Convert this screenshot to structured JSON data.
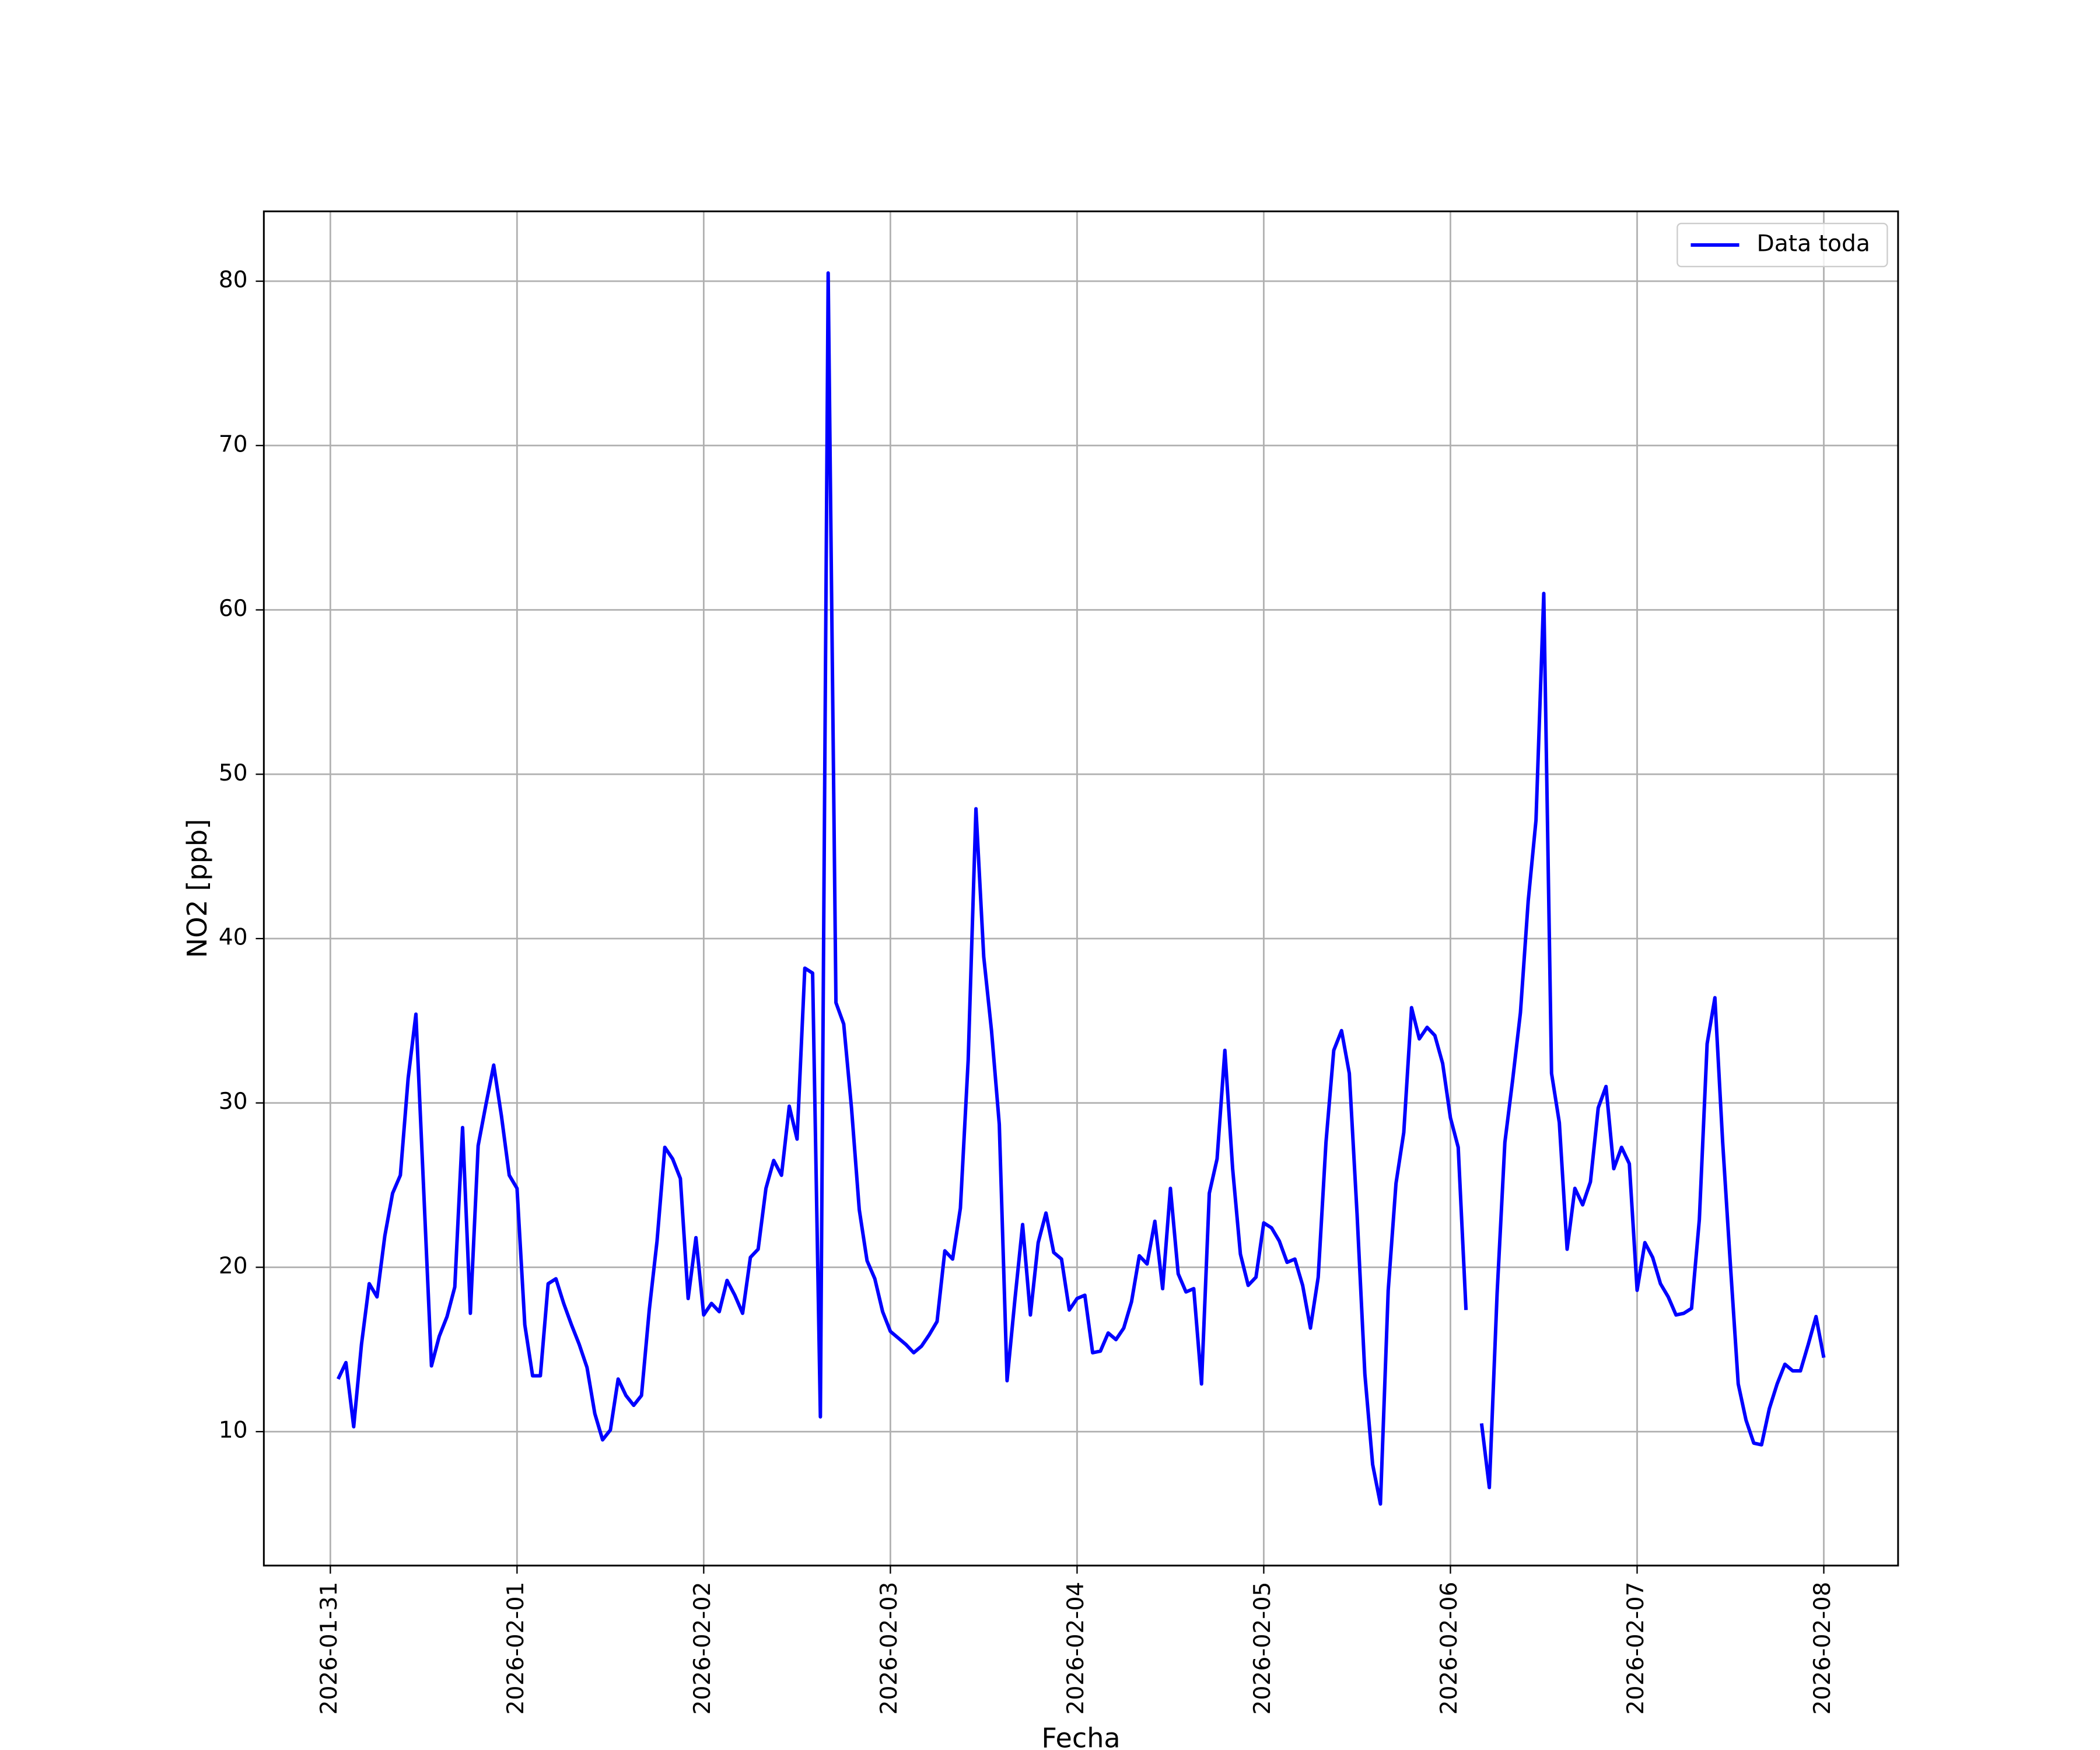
{
  "chart_data": {
    "type": "line",
    "x_label": "Fecha",
    "y_label": "NO2 [ppb]",
    "x": [
      "2026-01-31T01:00",
      "2026-01-31T02:00",
      "2026-01-31T03:00",
      "2026-01-31T04:00",
      "2026-01-31T05:00",
      "2026-01-31T06:00",
      "2026-01-31T07:00",
      "2026-01-31T08:00",
      "2026-01-31T09:00",
      "2026-01-31T10:00",
      "2026-01-31T11:00",
      "2026-01-31T12:00",
      "2026-01-31T13:00",
      "2026-01-31T14:00",
      "2026-01-31T15:00",
      "2026-01-31T16:00",
      "2026-01-31T17:00",
      "2026-01-31T18:00",
      "2026-01-31T19:00",
      "2026-01-31T20:00",
      "2026-01-31T21:00",
      "2026-01-31T22:00",
      "2026-01-31T23:00",
      "2026-02-01T00:00",
      "2026-02-01T01:00",
      "2026-02-01T02:00",
      "2026-02-01T03:00",
      "2026-02-01T04:00",
      "2026-02-01T05:00",
      "2026-02-01T06:00",
      "2026-02-01T07:00",
      "2026-02-01T08:00",
      "2026-02-01T09:00",
      "2026-02-01T10:00",
      "2026-02-01T11:00",
      "2026-02-01T12:00",
      "2026-02-01T13:00",
      "2026-02-01T14:00",
      "2026-02-01T15:00",
      "2026-02-01T16:00",
      "2026-02-01T17:00",
      "2026-02-01T18:00",
      "2026-02-01T19:00",
      "2026-02-01T20:00",
      "2026-02-01T21:00",
      "2026-02-01T22:00",
      "2026-02-01T23:00",
      "2026-02-02T00:00",
      "2026-02-02T01:00",
      "2026-02-02T02:00",
      "2026-02-02T03:00",
      "2026-02-02T04:00",
      "2026-02-02T05:00",
      "2026-02-02T06:00",
      "2026-02-02T07:00",
      "2026-02-02T08:00",
      "2026-02-02T09:00",
      "2026-02-02T10:00",
      "2026-02-02T11:00",
      "2026-02-02T12:00",
      "2026-02-02T13:00",
      "2026-02-02T14:00",
      "2026-02-02T15:00",
      "2026-02-02T16:00",
      "2026-02-02T17:00",
      "2026-02-02T18:00",
      "2026-02-02T19:00",
      "2026-02-02T20:00",
      "2026-02-02T21:00",
      "2026-02-02T22:00",
      "2026-02-02T23:00",
      "2026-02-03T00:00",
      "2026-02-03T01:00",
      "2026-02-03T02:00",
      "2026-02-03T03:00",
      "2026-02-03T04:00",
      "2026-02-03T05:00",
      "2026-02-03T06:00",
      "2026-02-03T07:00",
      "2026-02-03T08:00",
      "2026-02-03T09:00",
      "2026-02-03T10:00",
      "2026-02-03T11:00",
      "2026-02-03T12:00",
      "2026-02-03T13:00",
      "2026-02-03T14:00",
      "2026-02-03T15:00",
      "2026-02-03T16:00",
      "2026-02-03T17:00",
      "2026-02-03T18:00",
      "2026-02-03T19:00",
      "2026-02-03T20:00",
      "2026-02-03T21:00",
      "2026-02-03T22:00",
      "2026-02-03T23:00",
      "2026-02-04T00:00",
      "2026-02-04T01:00",
      "2026-02-04T02:00",
      "2026-02-04T03:00",
      "2026-02-04T04:00",
      "2026-02-04T05:00",
      "2026-02-04T06:00",
      "2026-02-04T07:00",
      "2026-02-04T08:00",
      "2026-02-04T09:00",
      "2026-02-04T10:00",
      "2026-02-04T11:00",
      "2026-02-04T12:00",
      "2026-02-04T13:00",
      "2026-02-04T14:00",
      "2026-02-04T15:00",
      "2026-02-04T16:00",
      "2026-02-04T17:00",
      "2026-02-04T18:00",
      "2026-02-04T19:00",
      "2026-02-04T20:00",
      "2026-02-04T21:00",
      "2026-02-04T22:00",
      "2026-02-04T23:00",
      "2026-02-05T00:00",
      "2026-02-05T01:00",
      "2026-02-05T02:00",
      "2026-02-05T03:00",
      "2026-02-05T04:00",
      "2026-02-05T05:00",
      "2026-02-05T06:00",
      "2026-02-05T07:00",
      "2026-02-05T08:00",
      "2026-02-05T09:00",
      "2026-02-05T10:00",
      "2026-02-05T11:00",
      "2026-02-05T12:00",
      "2026-02-05T13:00",
      "2026-02-05T14:00",
      "2026-02-05T15:00",
      "2026-02-05T16:00",
      "2026-02-05T17:00",
      "2026-02-05T18:00",
      "2026-02-05T19:00",
      "2026-02-05T20:00",
      "2026-02-05T21:00",
      "2026-02-05T22:00",
      "2026-02-05T23:00",
      "2026-02-06T00:00",
      "2026-02-06T01:00",
      "2026-02-06T02:00",
      "2026-02-06T03:00",
      "2026-02-06T04:00",
      "2026-02-06T05:00",
      "2026-02-06T06:00",
      "2026-02-06T07:00",
      "2026-02-06T08:00",
      "2026-02-06T09:00",
      "2026-02-06T10:00",
      "2026-02-06T11:00",
      "2026-02-06T12:00",
      "2026-02-06T13:00",
      "2026-02-06T14:00",
      "2026-02-06T15:00",
      "2026-02-06T16:00",
      "2026-02-06T17:00",
      "2026-02-06T18:00",
      "2026-02-06T19:00",
      "2026-02-06T20:00",
      "2026-02-06T21:00",
      "2026-02-06T22:00",
      "2026-02-06T23:00",
      "2026-02-07T00:00",
      "2026-02-07T01:00",
      "2026-02-07T02:00",
      "2026-02-07T03:00",
      "2026-02-07T04:00",
      "2026-02-07T05:00",
      "2026-02-07T06:00",
      "2026-02-07T07:00",
      "2026-02-07T08:00",
      "2026-02-07T09:00",
      "2026-02-07T10:00",
      "2026-02-07T11:00",
      "2026-02-07T12:00",
      "2026-02-07T13:00",
      "2026-02-07T14:00",
      "2026-02-07T15:00",
      "2026-02-07T16:00",
      "2026-02-07T17:00",
      "2026-02-07T18:00",
      "2026-02-07T19:00",
      "2026-02-07T20:00",
      "2026-02-07T21:00",
      "2026-02-07T22:00",
      "2026-02-07T23:00",
      "2026-02-08T00:00"
    ],
    "series": [
      {
        "name": "Data toda",
        "color": "#0000ff",
        "values": [
          13.2,
          14.2,
          10.3,
          15.3,
          19.0,
          18.2,
          21.9,
          24.5,
          25.6,
          31.5,
          35.4,
          24.7,
          14.0,
          15.8,
          17.0,
          18.8,
          28.5,
          17.2,
          27.4,
          29.9,
          32.3,
          29.2,
          25.6,
          24.8,
          16.5,
          13.4,
          13.4,
          19.0,
          19.3,
          17.8,
          16.5,
          15.3,
          13.9,
          11.1,
          9.5,
          10.1,
          13.2,
          12.2,
          11.6,
          12.2,
          17.4,
          21.6,
          27.3,
          26.6,
          25.4,
          18.1,
          21.8,
          17.1,
          17.8,
          17.3,
          19.2,
          18.3,
          17.2,
          20.6,
          21.1,
          24.8,
          26.5,
          25.6,
          29.8,
          27.8,
          38.2,
          37.9,
          10.9,
          80.5,
          36.1,
          34.8,
          29.7,
          23.5,
          20.4,
          19.3,
          17.3,
          16.1,
          15.7,
          15.3,
          14.8,
          15.2,
          15.9,
          16.7,
          21.0,
          20.5,
          23.6,
          32.6,
          47.9,
          38.9,
          34.4,
          28.7,
          13.1,
          18.0,
          22.6,
          17.1,
          21.5,
          23.3,
          20.9,
          20.5,
          17.4,
          18.1,
          18.3,
          14.8,
          14.9,
          16.0,
          15.6,
          16.3,
          17.9,
          20.7,
          20.2,
          22.8,
          18.7,
          24.8,
          19.6,
          18.5,
          18.7,
          12.9,
          24.5,
          26.6,
          33.2,
          26.0,
          20.8,
          18.9,
          19.4,
          22.7,
          22.4,
          21.6,
          20.3,
          20.5,
          18.9,
          16.3,
          19.4,
          27.6,
          33.2,
          34.4,
          31.8,
          23.2,
          13.5,
          8.0,
          5.6,
          18.6,
          25.1,
          28.2,
          35.8,
          33.9,
          34.6,
          34.1,
          32.4,
          29.1,
          27.3,
          17.4,
          null,
          10.5,
          6.6,
          18.4,
          27.6,
          31.4,
          35.5,
          42.3,
          47.2,
          61.0,
          31.8,
          28.8,
          21.1,
          24.8,
          23.8,
          25.2,
          29.7,
          31.0,
          26.0,
          27.3,
          26.3,
          18.6,
          21.5,
          20.6,
          19.0,
          18.2,
          17.1,
          17.2,
          17.5,
          22.9,
          33.6,
          36.4,
          27.6,
          20.1,
          12.9,
          10.7,
          9.3,
          9.2,
          11.4,
          12.9,
          14.1,
          13.7,
          13.7,
          15.3,
          17.0,
          14.5
        ]
      }
    ],
    "xlim": [
      "2026-01-30T15:27",
      "2026-02-08T09:33"
    ],
    "xticks": [
      "2026-01-31",
      "2026-02-01",
      "2026-02-02",
      "2026-02-03",
      "2026-02-04",
      "2026-02-05",
      "2026-02-06",
      "2026-02-07",
      "2026-02-08"
    ],
    "ylim": [
      1.85,
      84.25
    ],
    "yticks": [
      10,
      20,
      30,
      40,
      50,
      60,
      70,
      80
    ],
    "grid": true,
    "legend": "upper right"
  }
}
